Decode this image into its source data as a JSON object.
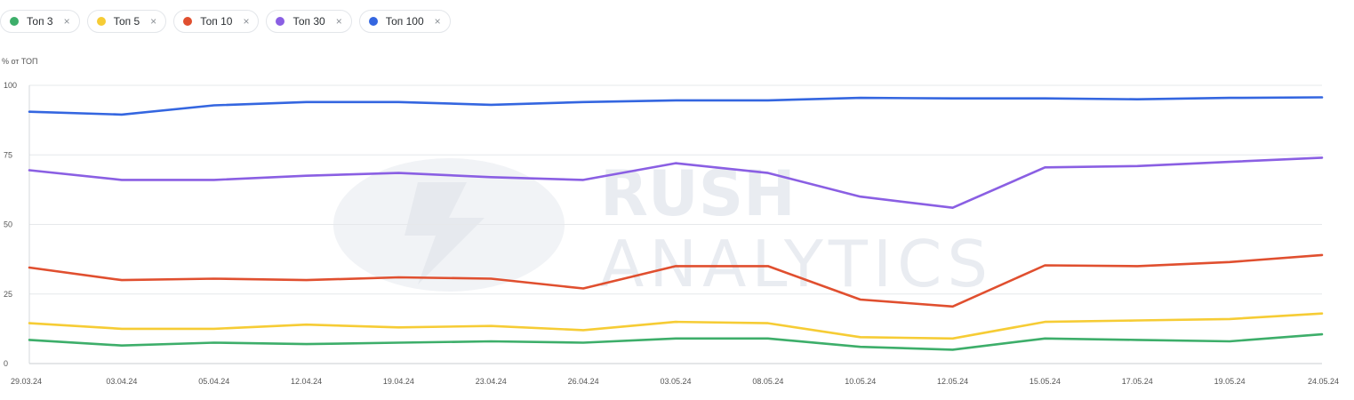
{
  "legend": [
    {
      "label": "Топ 3",
      "color": "#3dae6a",
      "close": "×"
    },
    {
      "label": "Топ 5",
      "color": "#f6cc35",
      "close": "×"
    },
    {
      "label": "Топ 10",
      "color": "#e04f2f",
      "close": "×"
    },
    {
      "label": "Топ 30",
      "color": "#8a5fe3",
      "close": "×"
    },
    {
      "label": "Топ 100",
      "color": "#3466e0",
      "close": "×"
    }
  ],
  "watermark": {
    "line1": "RUSH",
    "line2": "ANALYTICS"
  },
  "chart_data": {
    "type": "line",
    "ylabel": "% от ТОП",
    "ylim": [
      0,
      100
    ],
    "yticks": [
      0,
      25,
      50,
      75,
      100
    ],
    "grid": true,
    "categories": [
      "29.03.24",
      "03.04.24",
      "05.04.24",
      "12.04.24",
      "19.04.24",
      "23.04.24",
      "26.04.24",
      "03.05.24",
      "08.05.24",
      "10.05.24",
      "12.05.24",
      "15.05.24",
      "17.05.24",
      "19.05.24",
      "24.05.24"
    ],
    "series": [
      {
        "name": "Топ 100",
        "color": "#3466e0",
        "values": [
          90.5,
          89.5,
          92.8,
          94.0,
          94.0,
          93.0,
          94.0,
          94.6,
          94.6,
          95.5,
          95.3,
          95.3,
          95.0,
          95.5,
          95.7
        ]
      },
      {
        "name": "Топ 30",
        "color": "#8a5fe3",
        "values": [
          69.5,
          66.0,
          66.0,
          67.5,
          68.5,
          67.0,
          66.0,
          72.0,
          68.5,
          60.0,
          56.0,
          70.5,
          71.0,
          72.5,
          74.0
        ]
      },
      {
        "name": "Топ 10",
        "color": "#e04f2f",
        "values": [
          34.5,
          30.0,
          30.5,
          30.0,
          31.0,
          30.5,
          27.0,
          35.0,
          35.0,
          23.0,
          20.5,
          35.3,
          35.0,
          36.5,
          39.0
        ]
      },
      {
        "name": "Топ 5",
        "color": "#f6cc35",
        "values": [
          14.5,
          12.5,
          12.5,
          14.0,
          13.0,
          13.5,
          12.0,
          15.0,
          14.5,
          9.5,
          9.0,
          15.0,
          15.5,
          16.0,
          18.0
        ]
      },
      {
        "name": "Топ 3",
        "color": "#3dae6a",
        "values": [
          8.5,
          6.5,
          7.5,
          7.0,
          7.5,
          8.0,
          7.5,
          9.0,
          9.0,
          6.0,
          5.0,
          9.0,
          8.5,
          8.0,
          10.5
        ]
      }
    ]
  }
}
